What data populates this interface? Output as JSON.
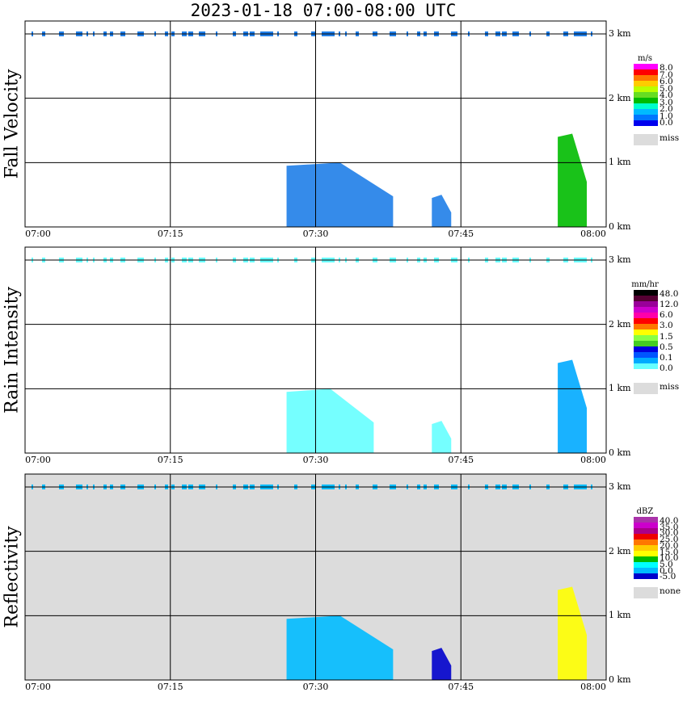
{
  "header": {
    "title": "2023-01-18   07:00-08:00 UTC"
  },
  "chart_data": [
    {
      "type": "heatmap",
      "ylabel": "Fall Velocity",
      "x_ticks": [
        "07:00",
        "07:15",
        "07:30",
        "07:45",
        "08:00"
      ],
      "y_ticks": [
        "0 km",
        "1 km",
        "2 km",
        "3 km"
      ],
      "xlim": [
        "07:00",
        "08:00"
      ],
      "ylim": [
        0,
        3.2
      ],
      "grid": true,
      "background": "#ffffff",
      "legend": {
        "unit": "m/s",
        "labels": [
          "8.0",
          "7.0",
          "6.0",
          "5.0",
          "4.0",
          "3.0",
          "2.0",
          "1.0",
          "0.0",
          "miss"
        ],
        "colors": [
          "#ff00ff",
          "#ff0000",
          "#ff7700",
          "#ffcc00",
          "#bbff00",
          "#66dd22",
          "#00bb00",
          "#00ffcc",
          "#00bbff",
          "#0077ff",
          "#0000ee",
          "#dcdcdc"
        ]
      },
      "cloud_layer_km": 3.0,
      "echoes": [
        {
          "start": "07:27",
          "end": "07:38",
          "top_km": 0.95,
          "color": "#1f7ee8"
        },
        {
          "start": "07:42",
          "end": "07:44",
          "top_km": 0.45,
          "color": "#1f7ee8"
        },
        {
          "start": "07:55",
          "end": "07:58",
          "top_km": 1.4,
          "color": "#00bb00"
        }
      ]
    },
    {
      "type": "heatmap",
      "ylabel": "Rain Intensity",
      "x_ticks": [
        "07:00",
        "07:15",
        "07:30",
        "07:45",
        "08:00"
      ],
      "y_ticks": [
        "0 km",
        "1 km",
        "2 km",
        "3 km"
      ],
      "xlim": [
        "07:00",
        "08:00"
      ],
      "ylim": [
        0,
        3.2
      ],
      "grid": true,
      "background": "#ffffff",
      "legend": {
        "unit": "mm/hr",
        "labels": [
          "48.0",
          "12.0",
          "6.0",
          "3.0",
          "1.5",
          "0.5",
          "0.1",
          "0.0",
          "miss"
        ],
        "colors": [
          "#000000",
          "#550033",
          "#990099",
          "#cc00cc",
          "#ff00aa",
          "#ff0000",
          "#ff7700",
          "#ffff00",
          "#88ff44",
          "#44cc22",
          "#0000dd",
          "#0055ff",
          "#00aaff",
          "#66ffff",
          "#ffffff",
          "#dcdcdc"
        ]
      },
      "cloud_layer_km": 3.0,
      "echoes": [
        {
          "start": "07:27",
          "end": "07:36",
          "top_km": 0.95,
          "color": "#66ffff"
        },
        {
          "start": "07:42",
          "end": "07:44",
          "top_km": 0.45,
          "color": "#66ffff"
        },
        {
          "start": "07:55",
          "end": "07:58",
          "top_km": 1.4,
          "color": "#00aaff"
        }
      ]
    },
    {
      "type": "heatmap",
      "ylabel": "Reflectivity",
      "x_ticks": [
        "07:00",
        "07:15",
        "07:30",
        "07:45",
        "08:00"
      ],
      "y_ticks": [
        "0 km",
        "1 km",
        "2 km",
        "3 km"
      ],
      "xlim": [
        "07:00",
        "08:00"
      ],
      "ylim": [
        0,
        3.2
      ],
      "grid": true,
      "background": "#dcdcdc",
      "legend": {
        "unit": "dBZ",
        "labels": [
          "40.0",
          "35.0",
          "30.0",
          "25.0",
          "20.0",
          "15.0",
          "10.0",
          "5.0",
          "0.0",
          "-5.0",
          "none"
        ],
        "colors": [
          "#aa33aa",
          "#cc00cc",
          "#aa0088",
          "#ee0000",
          "#ff7700",
          "#ffcc00",
          "#ffff00",
          "#00bb00",
          "#00ffff",
          "#00bbff",
          "#0000cc",
          "#dcdcdc"
        ]
      },
      "cloud_layer_km": 3.0,
      "echoes": [
        {
          "start": "07:27",
          "end": "07:38",
          "top_km": 0.95,
          "color": "#00bbff"
        },
        {
          "start": "07:42",
          "end": "07:44",
          "top_km": 0.45,
          "color": "#0000cc"
        },
        {
          "start": "07:55",
          "end": "07:58",
          "top_km": 1.4,
          "color": "#ffff00"
        }
      ]
    }
  ]
}
